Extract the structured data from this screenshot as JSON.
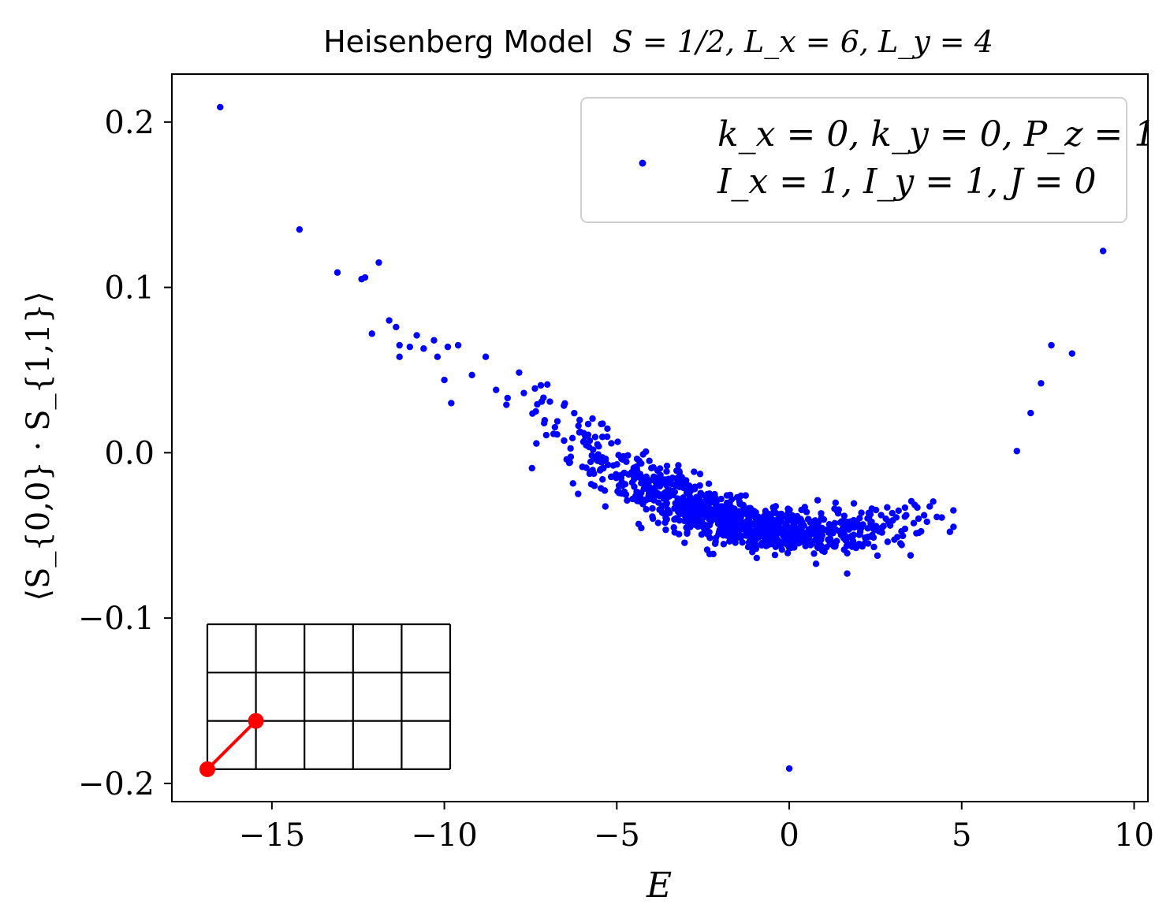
{
  "chart_data": {
    "type": "scatter",
    "title_prefix": "Heisenberg Model",
    "title_math": "S = 1/2, L_x = 6, L_y = 4",
    "title": "Heisenberg Model S = 1/2, L_x = 6, L_y = 4",
    "xlabel": "E",
    "ylabel": "⟨S_{0,0} · S_{1,1}⟩",
    "xlim": [
      -17.9,
      10.4
    ],
    "ylim": [
      -0.211,
      0.229
    ],
    "xticks": [
      {
        "value": -15,
        "label": "−15"
      },
      {
        "value": -10,
        "label": "−10"
      },
      {
        "value": -5,
        "label": "−5"
      },
      {
        "value": 0,
        "label": "0"
      },
      {
        "value": 5,
        "label": "5"
      },
      {
        "value": 10,
        "label": "10"
      }
    ],
    "yticks": [
      {
        "value": 0.2,
        "label": "0.2"
      },
      {
        "value": 0.1,
        "label": "0.1"
      },
      {
        "value": 0.0,
        "label": "0.0"
      },
      {
        "value": -0.1,
        "label": "−0.1"
      },
      {
        "value": -0.2,
        "label": "−0.2"
      }
    ],
    "legend": {
      "location": "upper right",
      "line1": "k_x = 0, k_y = 0, P_z = 1",
      "line2": "I_x = 1, I_y = 1, J = 0"
    },
    "colors": {
      "points": "#0000ff",
      "highlight": "#ff0000",
      "frame": "#000000"
    },
    "series": [
      {
        "name": "k_x = 0, k_y = 0, P_z = 1, I_x = 1, I_y = 1, J = 0",
        "explicit_points": [
          {
            "x": -16.5,
            "y": 0.209
          },
          {
            "x": -14.2,
            "y": 0.135
          },
          {
            "x": -13.1,
            "y": 0.109
          },
          {
            "x": -12.4,
            "y": 0.105
          },
          {
            "x": -12.3,
            "y": 0.106
          },
          {
            "x": -11.9,
            "y": 0.115
          },
          {
            "x": -12.1,
            "y": 0.072
          },
          {
            "x": -11.6,
            "y": 0.08
          },
          {
            "x": -11.4,
            "y": 0.076
          },
          {
            "x": -11.3,
            "y": 0.065
          },
          {
            "x": -11.3,
            "y": 0.058
          },
          {
            "x": -11.0,
            "y": 0.064
          },
          {
            "x": -10.8,
            "y": 0.071
          },
          {
            "x": -10.6,
            "y": 0.063
          },
          {
            "x": -10.3,
            "y": 0.068
          },
          {
            "x": -10.2,
            "y": 0.058
          },
          {
            "x": -9.9,
            "y": 0.064
          },
          {
            "x": -9.6,
            "y": 0.065
          },
          {
            "x": -10.0,
            "y": 0.044
          },
          {
            "x": -9.8,
            "y": 0.03
          },
          {
            "x": -9.2,
            "y": 0.047
          },
          {
            "x": -8.8,
            "y": 0.058
          },
          {
            "x": -8.5,
            "y": 0.038
          },
          {
            "x": -8.2,
            "y": 0.029
          },
          {
            "x": 0.0,
            "y": -0.191
          },
          {
            "x": 6.6,
            "y": 0.001
          },
          {
            "x": 7.0,
            "y": 0.024
          },
          {
            "x": 7.3,
            "y": 0.042
          },
          {
            "x": 7.6,
            "y": 0.065
          },
          {
            "x": 8.2,
            "y": 0.06
          },
          {
            "x": 9.1,
            "y": 0.122
          }
        ],
        "bulk_band": {
          "count": 1050,
          "x_range": [
            -8.8,
            5.6
          ],
          "center_curve": "y = 0.00108*(E-0.9)^2 - 0.049",
          "spread": {
            "x_-8.8": 0.01,
            "x_0": 0.006,
            "x_5.6": 0.012
          }
        }
      }
    ],
    "inset": {
      "description": "lattice",
      "columns": 5,
      "rows": 3,
      "highlighted_bond": [
        [
          0,
          0
        ],
        [
          1,
          1
        ]
      ]
    }
  }
}
